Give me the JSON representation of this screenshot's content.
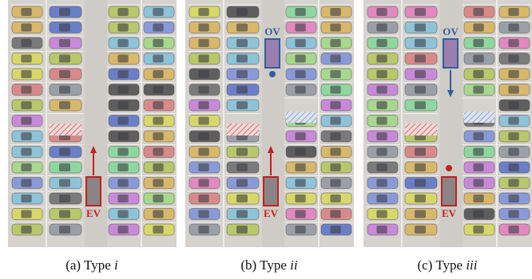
{
  "panels": [
    {
      "caption": {
        "label": "(a)",
        "word": "Type",
        "numeral": "i"
      },
      "ego_label": "EV"
    },
    {
      "caption": {
        "label": "(b)",
        "word": "Type",
        "numeral": "ii"
      },
      "ego_label": "EV",
      "other_label": "OV"
    },
    {
      "caption": {
        "label": "(c)",
        "word": "Type",
        "numeral": "iii"
      },
      "ego_label": "EV",
      "other_label": "OV"
    }
  ]
}
